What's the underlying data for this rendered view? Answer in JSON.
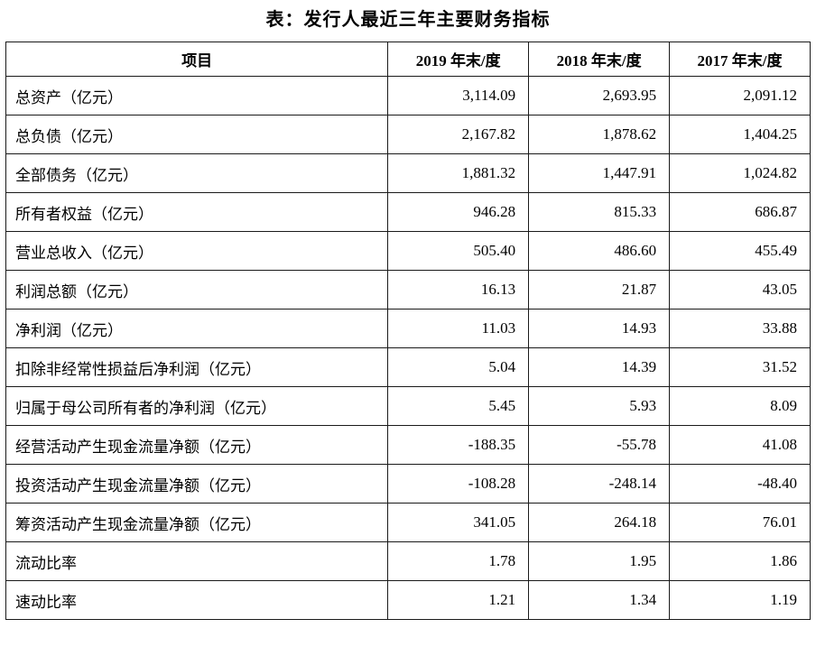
{
  "title": "表：发行人最近三年主要财务指标",
  "table": {
    "columns": [
      "项目",
      "2019 年末/度",
      "2018 年末/度",
      "2017 年末/度"
    ],
    "rows": [
      {
        "label": "总资产（亿元）",
        "values": [
          "3,114.09",
          "2,693.95",
          "2,091.12"
        ]
      },
      {
        "label": "总负债（亿元）",
        "values": [
          "2,167.82",
          "1,878.62",
          "1,404.25"
        ]
      },
      {
        "label": "全部债务（亿元）",
        "values": [
          "1,881.32",
          "1,447.91",
          "1,024.82"
        ]
      },
      {
        "label": "所有者权益（亿元）",
        "values": [
          "946.28",
          "815.33",
          "686.87"
        ]
      },
      {
        "label": "营业总收入（亿元）",
        "values": [
          "505.40",
          "486.60",
          "455.49"
        ]
      },
      {
        "label": "利润总额（亿元）",
        "values": [
          "16.13",
          "21.87",
          "43.05"
        ]
      },
      {
        "label": "净利润（亿元）",
        "values": [
          "11.03",
          "14.93",
          "33.88"
        ]
      },
      {
        "label": "扣除非经常性损益后净利润（亿元）",
        "values": [
          "5.04",
          "14.39",
          "31.52"
        ]
      },
      {
        "label": "归属于母公司所有者的净利润（亿元）",
        "values": [
          "5.45",
          "5.93",
          "8.09"
        ]
      },
      {
        "label": "经营活动产生现金流量净额（亿元）",
        "values": [
          "-188.35",
          "-55.78",
          "41.08"
        ]
      },
      {
        "label": "投资活动产生现金流量净额（亿元）",
        "values": [
          "-108.28",
          "-248.14",
          "-48.40"
        ]
      },
      {
        "label": "筹资活动产生现金流量净额（亿元）",
        "values": [
          "341.05",
          "264.18",
          "76.01"
        ]
      },
      {
        "label": "流动比率",
        "values": [
          "1.78",
          "1.95",
          "1.86"
        ]
      },
      {
        "label": "速动比率",
        "values": [
          "1.21",
          "1.34",
          "1.19"
        ]
      }
    ]
  }
}
